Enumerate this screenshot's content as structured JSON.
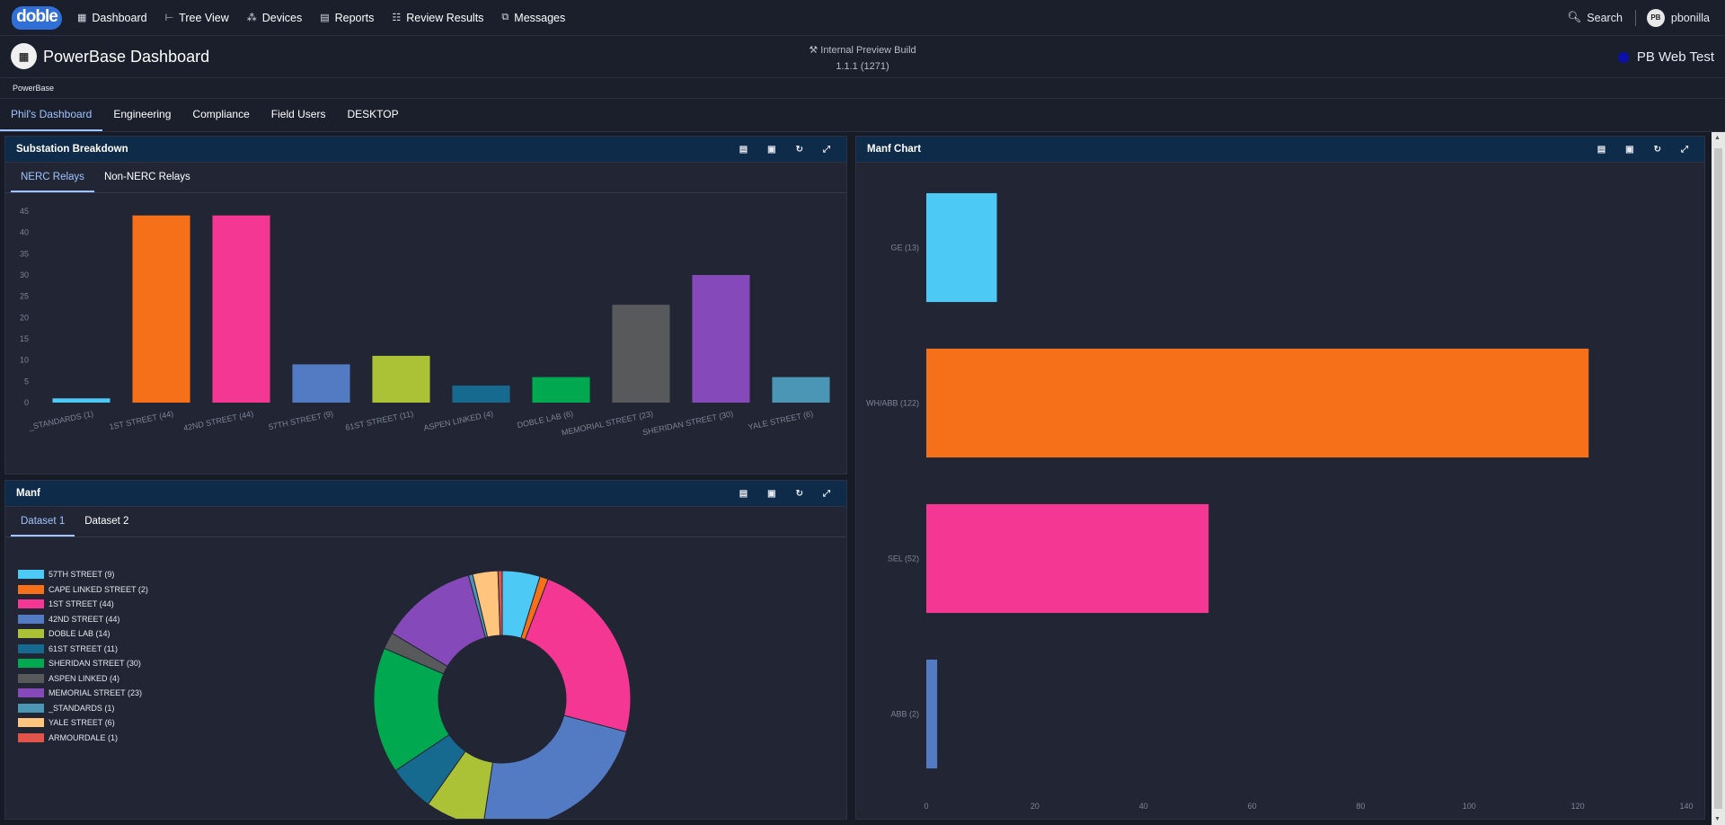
{
  "nav": {
    "logo": "doble",
    "items": [
      {
        "label": "Dashboard",
        "icon": "dashboard-icon",
        "glyph": "▦"
      },
      {
        "label": "Tree View",
        "icon": "tree-icon",
        "glyph": "⊢"
      },
      {
        "label": "Devices",
        "icon": "devices-icon",
        "glyph": "⁂"
      },
      {
        "label": "Reports",
        "icon": "reports-icon",
        "glyph": "▤"
      },
      {
        "label": "Review Results",
        "icon": "review-icon",
        "glyph": "☷"
      },
      {
        "label": "Messages",
        "icon": "messages-icon",
        "glyph": "⧉"
      }
    ],
    "search_label": "Search",
    "avatar_initials": "PB",
    "username": "pbonilla"
  },
  "header": {
    "title": "PowerBase Dashboard",
    "build_line1": "⚒ Internal Preview Build",
    "build_line2": "1.1.1 (1271)",
    "environment": "PB Web Test",
    "breadcrumb": "PowerBase"
  },
  "tabs": [
    "Phil's Dashboard",
    "Engineering",
    "Compliance",
    "Field Users",
    "DESKTOP"
  ],
  "active_tab": 0,
  "panels": {
    "substation": {
      "title": "Substation Breakdown",
      "tabs": [
        "NERC Relays",
        "Non-NERC Relays"
      ]
    },
    "manf": {
      "title": "Manf",
      "tabs": [
        "Dataset 1",
        "Dataset 2"
      ]
    },
    "manf_chart": {
      "title": "Manf Chart"
    }
  },
  "colors": {
    "cyan": "#4dc9f6",
    "orange": "#f67019",
    "pink": "#f53794",
    "blue": "#537bc4",
    "lime": "#acc236",
    "teal": "#166a8f",
    "green": "#00a950",
    "gray": "#58595b",
    "purple": "#8549ba",
    "steel": "#4b95b5",
    "peach": "#ffc57f",
    "red": "#e0544a"
  },
  "chart_data": [
    {
      "type": "bar",
      "title": "Substation Breakdown",
      "categories": [
        "_STANDARDS (1)",
        "1ST STREET (44)",
        "42ND STREET (44)",
        "57TH STREET (9)",
        "61ST STREET (11)",
        "ASPEN LINKED (4)",
        "DOBLE LAB (6)",
        "MEMORIAL STREET (23)",
        "SHERIDAN STREET (30)",
        "YALE STREET (6)"
      ],
      "values": [
        1,
        44,
        44,
        9,
        11,
        4,
        6,
        23,
        30,
        6
      ],
      "colors": [
        "#4dc9f6",
        "#f67019",
        "#f53794",
        "#537bc4",
        "#acc236",
        "#166a8f",
        "#00a950",
        "#58595b",
        "#8549ba",
        "#4b95b5"
      ],
      "ylim": [
        0,
        45
      ],
      "yticks": [
        0,
        5,
        10,
        15,
        20,
        25,
        30,
        35,
        40,
        45
      ]
    },
    {
      "type": "pie",
      "title": "Manf",
      "legend_position": "left",
      "labels": [
        "57TH STREET (9)",
        "CAPE LINKED STREET (2)",
        "1ST STREET (44)",
        "42ND STREET (44)",
        "DOBLE LAB (14)",
        "61ST STREET (11)",
        "SHERIDAN STREET (30)",
        "ASPEN LINKED (4)",
        "MEMORIAL STREET (23)",
        "_STANDARDS (1)",
        "YALE STREET (6)",
        "ARMOURDALE (1)"
      ],
      "values": [
        9,
        2,
        44,
        44,
        14,
        11,
        30,
        4,
        23,
        1,
        6,
        1
      ],
      "colors": [
        "#4dc9f6",
        "#f67019",
        "#f53794",
        "#537bc4",
        "#acc236",
        "#166a8f",
        "#00a950",
        "#58595b",
        "#8549ba",
        "#4b95b5",
        "#ffc57f",
        "#e0544a"
      ]
    },
    {
      "type": "bar",
      "orientation": "horizontal",
      "title": "Manf Chart",
      "categories": [
        "GE (13)",
        "WH/ABB (122)",
        "SEL (52)",
        "ABB (2)"
      ],
      "values": [
        13,
        122,
        52,
        2
      ],
      "colors": [
        "#4dc9f6",
        "#f67019",
        "#f53794",
        "#537bc4"
      ],
      "xlim": [
        0,
        140
      ],
      "xticks": [
        0,
        20,
        40,
        60,
        80,
        100,
        120,
        140
      ]
    }
  ]
}
